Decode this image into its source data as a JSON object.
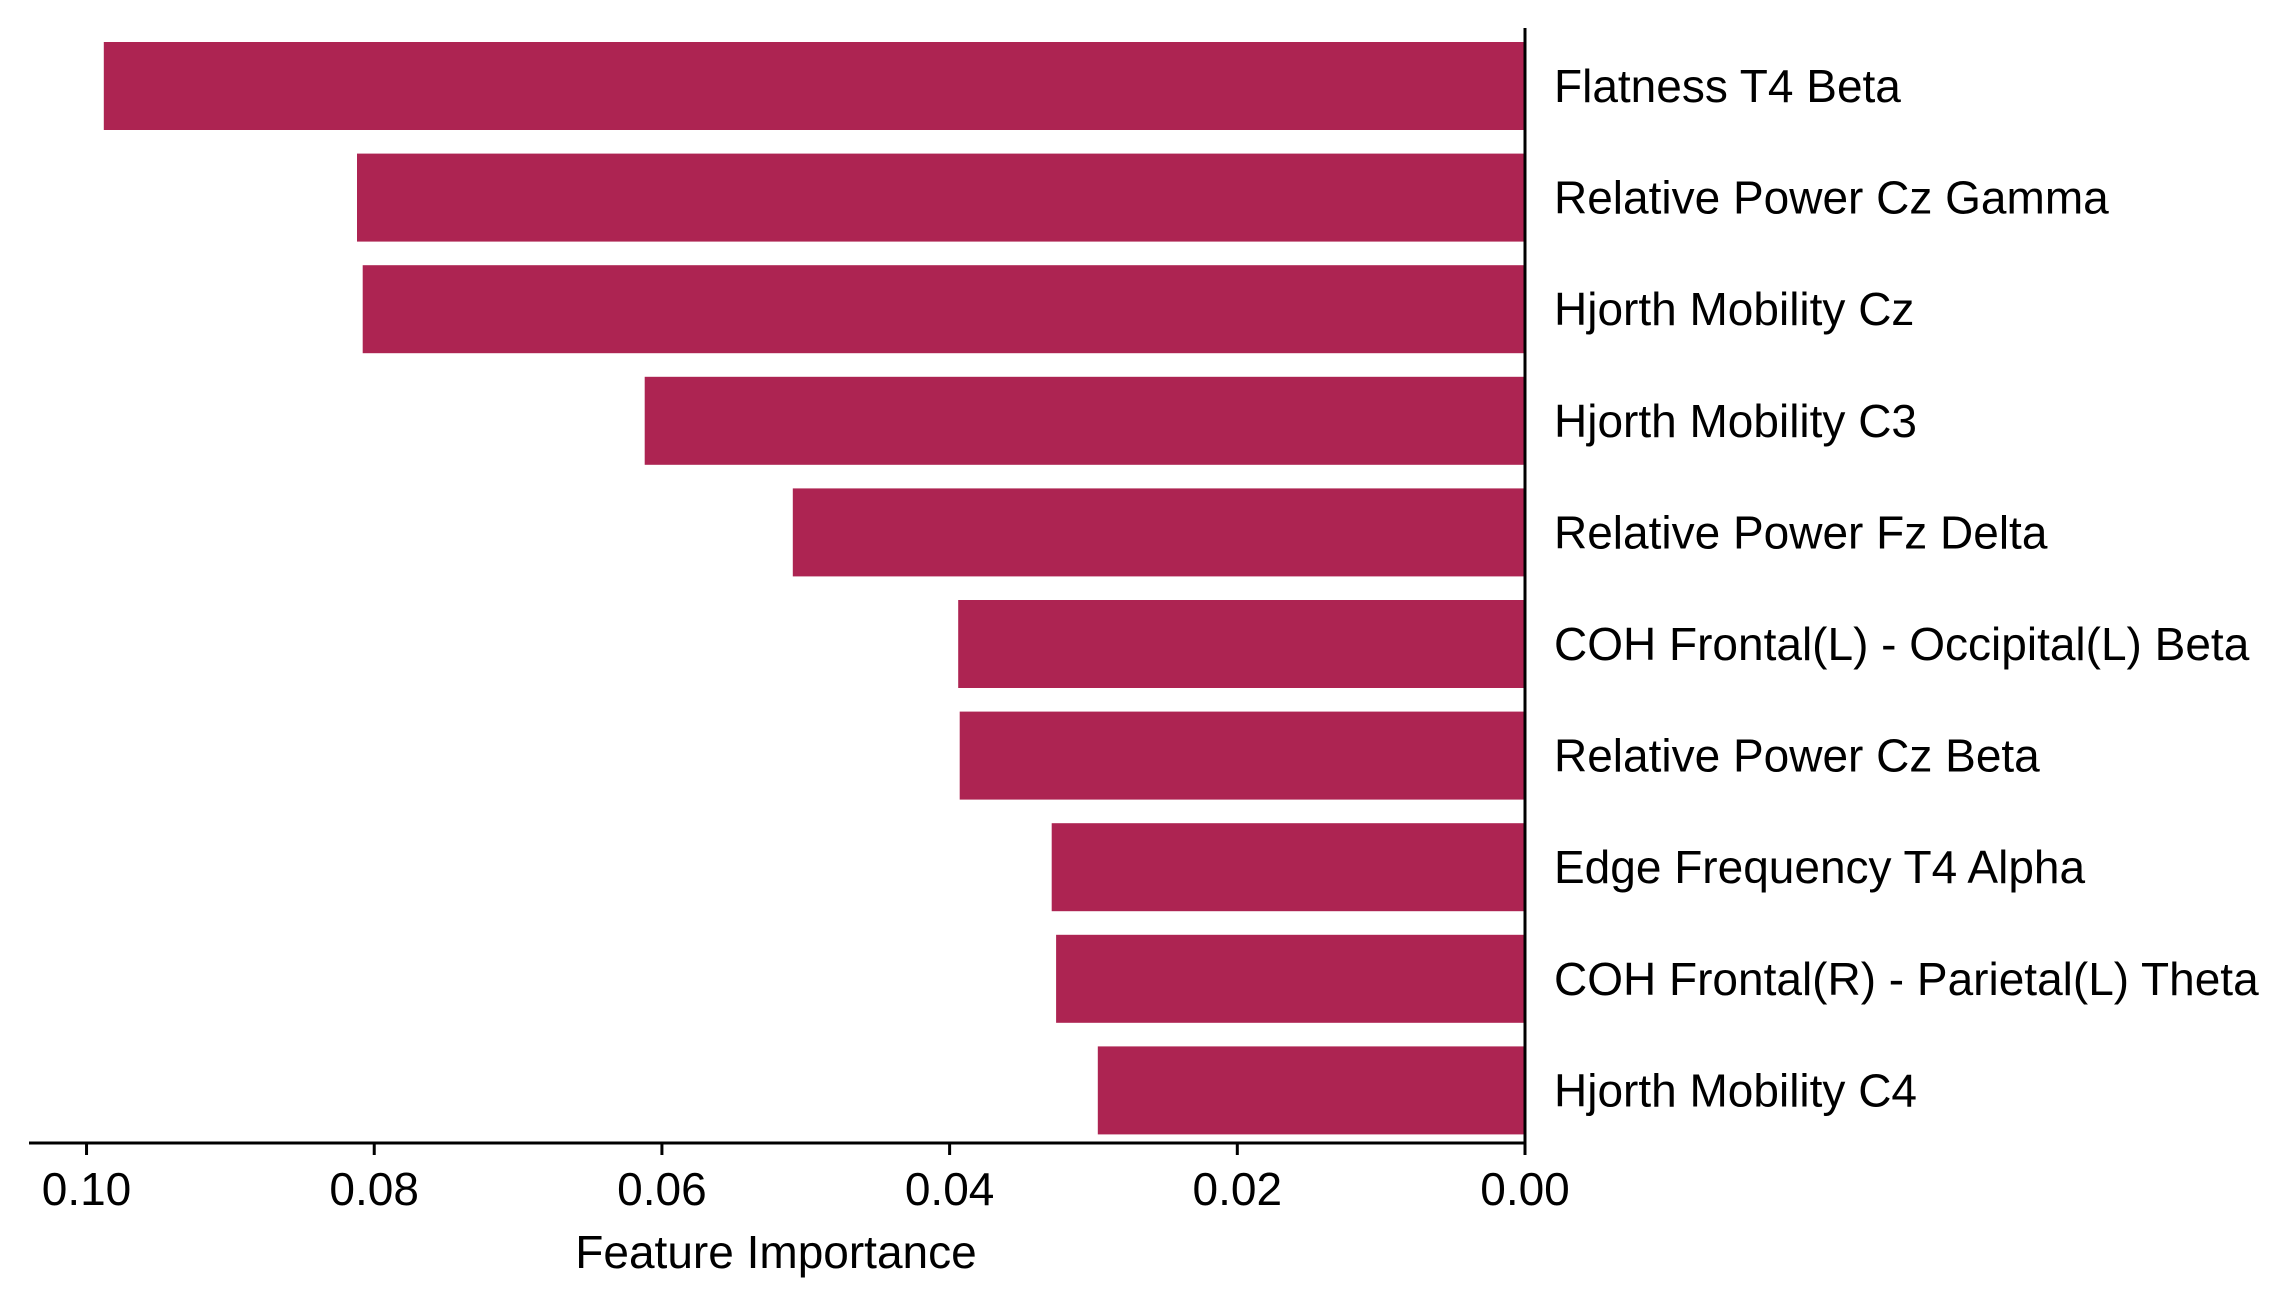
{
  "chart_data": {
    "type": "bar",
    "orientation": "horizontal",
    "x_axis_inverted": true,
    "categories": [
      "Flatness T4 Beta",
      "Relative Power Cz Gamma",
      "Hjorth Mobility Cz",
      "Hjorth Mobility C3",
      "Relative Power Fz Delta",
      "COH Frontal(L) - Occipital(L) Beta",
      "Relative Power Cz Beta",
      "Edge Frequency T4 Alpha",
      "COH Frontal(R) - Parietal(L) Theta",
      "Hjorth Mobility C4"
    ],
    "values": [
      0.0988,
      0.0812,
      0.0808,
      0.0612,
      0.0509,
      0.0394,
      0.0393,
      0.0329,
      0.0326,
      0.0297
    ],
    "xlabel": "Feature Importance",
    "ylabel": "",
    "title": "",
    "xlim": [
      0.104,
      0.0
    ],
    "xticks": [
      0.1,
      0.08,
      0.06,
      0.04,
      0.02,
      0.0
    ],
    "xtick_labels": [
      "0.10",
      "0.08",
      "0.06",
      "0.04",
      "0.02",
      "0.00"
    ],
    "grid": false,
    "bar_color": "#ad2452"
  }
}
